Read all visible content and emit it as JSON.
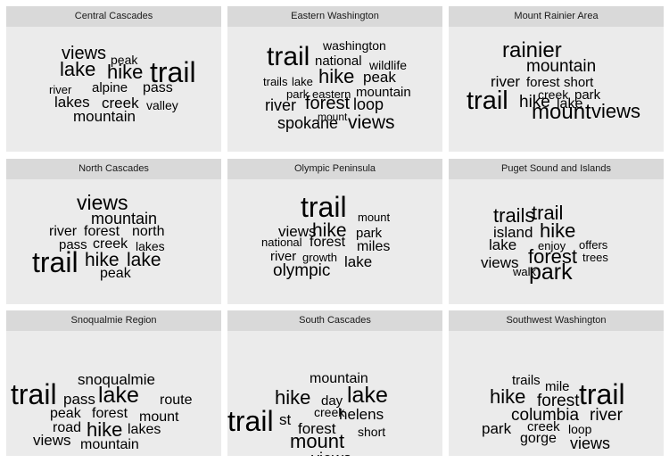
{
  "chart_data": {
    "type": "wordcloud",
    "panels": [
      {
        "title": "Central Cascades",
        "words": [
          {
            "text": "views",
            "size": 20
          },
          {
            "text": "peak",
            "size": 14
          },
          {
            "text": "lake",
            "size": 22
          },
          {
            "text": "hike",
            "size": 22
          },
          {
            "text": "trail",
            "size": 32
          },
          {
            "text": "river",
            "size": 13
          },
          {
            "text": "alpine",
            "size": 15
          },
          {
            "text": "pass",
            "size": 16
          },
          {
            "text": "lakes",
            "size": 17
          },
          {
            "text": "creek",
            "size": 17
          },
          {
            "text": "valley",
            "size": 14
          },
          {
            "text": "mountain",
            "size": 17
          }
        ]
      },
      {
        "title": "Eastern Washington",
        "words": [
          {
            "text": "washington",
            "size": 14
          },
          {
            "text": "trail",
            "size": 30
          },
          {
            "text": "national",
            "size": 15
          },
          {
            "text": "wildlife",
            "size": 14
          },
          {
            "text": "trails",
            "size": 13
          },
          {
            "text": "lake",
            "size": 13
          },
          {
            "text": "hike",
            "size": 22
          },
          {
            "text": "peak",
            "size": 17
          },
          {
            "text": "park",
            "size": 13
          },
          {
            "text": "eastern",
            "size": 13
          },
          {
            "text": "mountain",
            "size": 15
          },
          {
            "text": "river",
            "size": 18
          },
          {
            "text": "forest",
            "size": 20
          },
          {
            "text": "loop",
            "size": 18
          },
          {
            "text": "mount",
            "size": 12
          },
          {
            "text": "spokane",
            "size": 18
          },
          {
            "text": "views",
            "size": 21
          }
        ]
      },
      {
        "title": "Mount Rainier Area",
        "words": [
          {
            "text": "rainier",
            "size": 24
          },
          {
            "text": "mountain",
            "size": 19
          },
          {
            "text": "river",
            "size": 17
          },
          {
            "text": "forest",
            "size": 15
          },
          {
            "text": "short",
            "size": 15
          },
          {
            "text": "creek",
            "size": 14
          },
          {
            "text": "park",
            "size": 15
          },
          {
            "text": "trail",
            "size": 29
          },
          {
            "text": "hike",
            "size": 19
          },
          {
            "text": "lake",
            "size": 16
          },
          {
            "text": "mount",
            "size": 24
          },
          {
            "text": "views",
            "size": 22
          }
        ]
      },
      {
        "title": "North Cascades",
        "words": [
          {
            "text": "views",
            "size": 23
          },
          {
            "text": "mountain",
            "size": 18
          },
          {
            "text": "river",
            "size": 16
          },
          {
            "text": "forest",
            "size": 16
          },
          {
            "text": "north",
            "size": 16
          },
          {
            "text": "pass",
            "size": 15
          },
          {
            "text": "creek",
            "size": 16
          },
          {
            "text": "lakes",
            "size": 14
          },
          {
            "text": "trail",
            "size": 32
          },
          {
            "text": "hike",
            "size": 21
          },
          {
            "text": "lake",
            "size": 21
          },
          {
            "text": "peak",
            "size": 16
          }
        ]
      },
      {
        "title": "Olympic Peninsula",
        "words": [
          {
            "text": "trail",
            "size": 32
          },
          {
            "text": "views",
            "size": 17
          },
          {
            "text": "mount",
            "size": 13
          },
          {
            "text": "hike",
            "size": 21
          },
          {
            "text": "park",
            "size": 15
          },
          {
            "text": "national",
            "size": 13
          },
          {
            "text": "forest",
            "size": 16
          },
          {
            "text": "miles",
            "size": 16
          },
          {
            "text": "river",
            "size": 15
          },
          {
            "text": "growth",
            "size": 13
          },
          {
            "text": "lake",
            "size": 17
          },
          {
            "text": "olympic",
            "size": 19
          }
        ]
      },
      {
        "title": "Puget Sound and Islands",
        "words": [
          {
            "text": "trails",
            "size": 22
          },
          {
            "text": "trail",
            "size": 22
          },
          {
            "text": "island",
            "size": 17
          },
          {
            "text": "hike",
            "size": 22
          },
          {
            "text": "lake",
            "size": 17
          },
          {
            "text": "enjoy",
            "size": 13
          },
          {
            "text": "offers",
            "size": 13
          },
          {
            "text": "forest",
            "size": 22
          },
          {
            "text": "trees",
            "size": 13
          },
          {
            "text": "views",
            "size": 17
          },
          {
            "text": "park",
            "size": 25
          },
          {
            "text": "walk",
            "size": 13
          }
        ]
      },
      {
        "title": "Snoqualmie Region",
        "words": [
          {
            "text": "snoqualmie",
            "size": 17
          },
          {
            "text": "trail",
            "size": 32
          },
          {
            "text": "pass",
            "size": 17
          },
          {
            "text": "lake",
            "size": 25
          },
          {
            "text": "route",
            "size": 16
          },
          {
            "text": "peak",
            "size": 16
          },
          {
            "text": "forest",
            "size": 16
          },
          {
            "text": "mount",
            "size": 16
          },
          {
            "text": "road",
            "size": 16
          },
          {
            "text": "hike",
            "size": 22
          },
          {
            "text": "lakes",
            "size": 16
          },
          {
            "text": "views",
            "size": 17
          },
          {
            "text": "mountain",
            "size": 16
          }
        ]
      },
      {
        "title": "South Cascades",
        "words": [
          {
            "text": "mountain",
            "size": 16
          },
          {
            "text": "hike",
            "size": 22
          },
          {
            "text": "day",
            "size": 15
          },
          {
            "text": "lake",
            "size": 25
          },
          {
            "text": "creek",
            "size": 14
          },
          {
            "text": "helens",
            "size": 17
          },
          {
            "text": "trail",
            "size": 32
          },
          {
            "text": "st",
            "size": 17
          },
          {
            "text": "forest",
            "size": 17
          },
          {
            "text": "short",
            "size": 14
          },
          {
            "text": "mount",
            "size": 22
          },
          {
            "text": "views",
            "size": 18
          }
        ]
      },
      {
        "title": "Southwest Washington",
        "words": [
          {
            "text": "trails",
            "size": 15
          },
          {
            "text": "mile",
            "size": 15
          },
          {
            "text": "hike",
            "size": 22
          },
          {
            "text": "forest",
            "size": 19
          },
          {
            "text": "trail",
            "size": 32
          },
          {
            "text": "columbia",
            "size": 19
          },
          {
            "text": "river",
            "size": 19
          },
          {
            "text": "park",
            "size": 17
          },
          {
            "text": "creek",
            "size": 15
          },
          {
            "text": "loop",
            "size": 14
          },
          {
            "text": "gorge",
            "size": 16
          },
          {
            "text": "views",
            "size": 18
          }
        ]
      }
    ]
  }
}
